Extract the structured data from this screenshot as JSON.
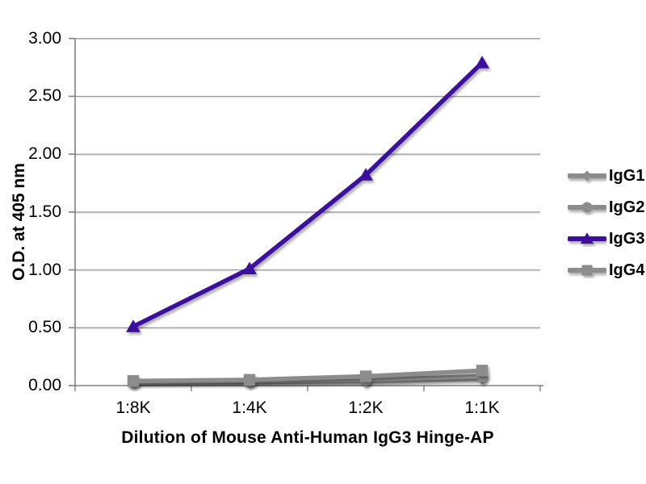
{
  "figure": {
    "x_axis_title": "Dilution of Mouse Anti-Human IgG3 Hinge-AP",
    "y_axis_title": "O.D. at 405 nm"
  },
  "theme": {
    "background": "#ffffff",
    "axis_color": "#808080",
    "grid_color": "#9c9c9c",
    "text_color": "#000000",
    "gray_series_color": "#8c8c8c",
    "accent_series_color": "#3d0f9e"
  },
  "chart_data": {
    "type": "line",
    "title": "",
    "xlabel": "Dilution of Mouse Anti-Human IgG3 Hinge-AP",
    "ylabel": "O.D. at 405 nm",
    "categories": [
      "1:8K",
      "1:4K",
      "1:2K",
      "1:1K"
    ],
    "series": [
      {
        "name": "IgG1",
        "marker": "diamond",
        "color": "#8c8c8c",
        "values": [
          0.03,
          0.03,
          0.04,
          0.06
        ]
      },
      {
        "name": "IgG2",
        "marker": "circle",
        "color": "#8c8c8c",
        "values": [
          0.03,
          0.04,
          0.05,
          0.08
        ]
      },
      {
        "name": "IgG3",
        "marker": "triangle",
        "color": "#3d0f9e",
        "values": [
          0.51,
          1.01,
          1.82,
          2.79
        ]
      },
      {
        "name": "IgG4",
        "marker": "square",
        "color": "#8c8c8c",
        "values": [
          0.04,
          0.05,
          0.08,
          0.13
        ]
      }
    ],
    "ylim": [
      0,
      3
    ],
    "y_ticks": [
      "0.00",
      "0.50",
      "1.00",
      "1.50",
      "2.00",
      "2.50",
      "3.00"
    ],
    "grid": true,
    "legend_position": "right"
  }
}
